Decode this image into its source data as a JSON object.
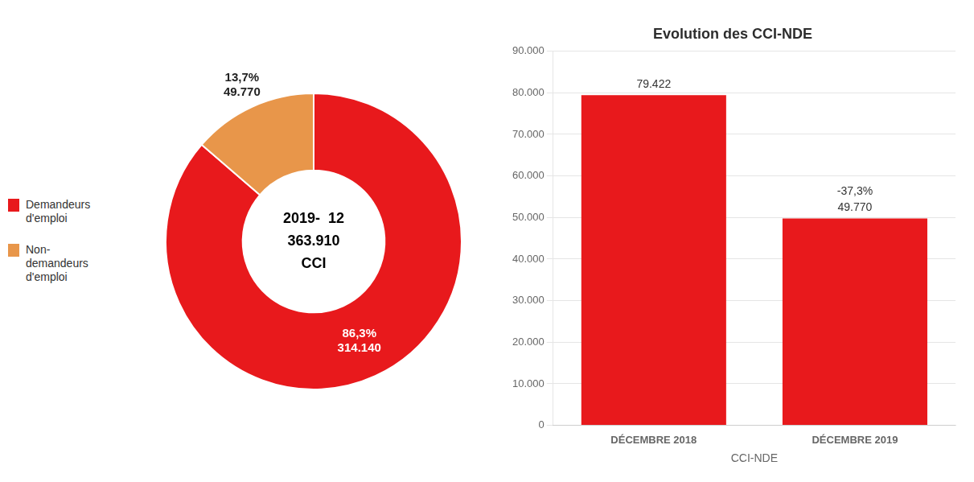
{
  "chart_data": [
    {
      "type": "donut",
      "categories": [
        "Demandeurs\nd'emploi",
        "Non-\ndemandeurs\nd'emploi"
      ],
      "values": [
        314140,
        49770
      ],
      "value_labels": [
        "86,3%\n314.140",
        "13,7%\n49.770"
      ],
      "colors": [
        "#e8191c",
        "#e8964a"
      ],
      "annotations": [
        "2019-  12",
        "363.910",
        "CCI"
      ],
      "legend": "left",
      "data_labels": true
    },
    {
      "type": "bar",
      "title": "Evolution des CCI-NDE",
      "xlabel": "CCI-NDE",
      "categories": [
        "DÉCEMBRE 2018",
        "DÉCEMBRE 2019"
      ],
      "values": [
        79422,
        49770
      ],
      "value_labels": [
        "79.422",
        "49.770"
      ],
      "color": "#e8191c",
      "annotations": [
        {
          "category": "DÉCEMBRE 2019",
          "text": "-37,3%"
        }
      ],
      "ylim": [
        0,
        90000
      ],
      "yticks": [
        0,
        {
          "value": 10000,
          "label": "10.000"
        },
        {
          "value": 20000,
          "label": "20.000"
        },
        {
          "value": 30000,
          "label": "30.000"
        },
        {
          "value": 40000,
          "label": "40.000"
        },
        {
          "value": 50000,
          "label": "50.000"
        },
        {
          "value": 60000,
          "label": "60.000"
        },
        {
          "value": 70000,
          "label": "70.000"
        },
        {
          "value": 80000,
          "label": "80.000"
        },
        {
          "value": 90000,
          "label": "90.000"
        }
      ],
      "grid": true,
      "data_labels": true
    }
  ]
}
